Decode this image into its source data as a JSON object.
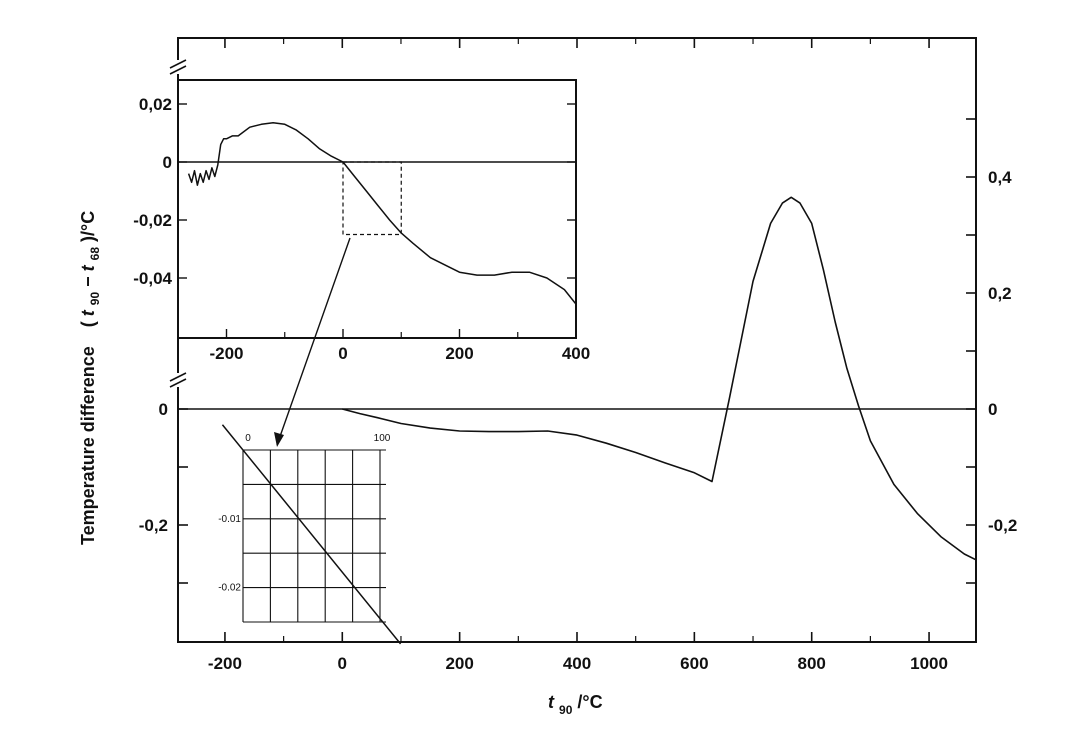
{
  "chart_data": [
    {
      "type": "line",
      "panel": "main",
      "ylabel_text": "Temperature difference",
      "ylabel_math": {
        "open": "(",
        "t1": "t",
        "s1": "90",
        "minus": " − ",
        "t2": "t",
        "s2": "68",
        "close": ")/°C"
      },
      "xlabel": {
        "t": "t",
        "sub": "90",
        "rest": "/°C"
      },
      "xlim": [
        -280,
        1080
      ],
      "ylim": [
        -0.4,
        0.55
      ],
      "xticks": [
        -200,
        0,
        200,
        400,
        600,
        800,
        1000
      ],
      "xtick_labels": [
        "-200",
        "0",
        "200",
        "400",
        "600",
        "800",
        "1000"
      ],
      "yticks_left": [
        0,
        -0.2
      ],
      "ytick_left_labels": [
        "0",
        "-0,2"
      ],
      "yticks_right": [
        0.4,
        0.2,
        0,
        -0.2
      ],
      "ytick_right_labels": [
        "0,4",
        "0,2",
        "0",
        "-0,2"
      ],
      "reference_line_y": 0,
      "series": [
        {
          "x": [
            0,
            30,
            60,
            100,
            150,
            200,
            250,
            300,
            350,
            400,
            450,
            500,
            550,
            600,
            630,
            660,
            700,
            730,
            750,
            765,
            780,
            800,
            820,
            840,
            860,
            880,
            900,
            940,
            980,
            1020,
            1060,
            1080
          ],
          "y": [
            0,
            -0.008,
            -0.015,
            -0.025,
            -0.033,
            -0.038,
            -0.039,
            -0.039,
            -0.038,
            -0.045,
            -0.059,
            -0.075,
            -0.093,
            -0.11,
            -0.125,
            0.02,
            0.22,
            0.32,
            0.355,
            0.365,
            0.355,
            0.32,
            0.24,
            0.15,
            0.07,
            0.005,
            -0.055,
            -0.13,
            -0.18,
            -0.22,
            -0.25,
            -0.26
          ]
        }
      ]
    },
    {
      "type": "line",
      "panel": "upper-inset",
      "xlim": [
        -270,
        400
      ],
      "ylim": [
        -0.06,
        0.03
      ],
      "xticks": [
        -200,
        0,
        200,
        400
      ],
      "xtick_labels": [
        "-200",
        "0",
        "200",
        "400"
      ],
      "yticks": [
        0.02,
        0,
        -0.02,
        -0.04
      ],
      "ytick_labels": [
        "0,02",
        "0",
        "-0,02",
        "-0,04"
      ],
      "reference_line_y": 0,
      "zoom_box": {
        "x": [
          0,
          100
        ],
        "y": [
          -0.025,
          0
        ]
      },
      "series": [
        {
          "x": [
            -265,
            -260,
            -255,
            -250,
            -245,
            -240,
            -235,
            -230,
            -225,
            -220,
            -215,
            -210,
            -205,
            -200,
            -190,
            -180,
            -160,
            -140,
            -120,
            -100,
            -80,
            -60,
            -40,
            -20,
            0,
            20,
            40,
            60,
            80,
            100,
            120,
            150,
            180,
            200,
            230,
            260,
            290,
            320,
            350,
            380,
            400
          ],
          "y": [
            -0.004,
            -0.007,
            -0.003,
            -0.008,
            -0.004,
            -0.007,
            -0.003,
            -0.006,
            -0.002,
            -0.005,
            -0.001,
            0.006,
            0.008,
            0.008,
            0.009,
            0.009,
            0.012,
            0.013,
            0.0135,
            0.013,
            0.011,
            0.008,
            0.0045,
            0.002,
            0,
            -0.005,
            -0.01,
            -0.015,
            -0.02,
            -0.0245,
            -0.028,
            -0.033,
            -0.036,
            -0.038,
            -0.039,
            -0.039,
            -0.038,
            -0.038,
            -0.04,
            -0.044,
            -0.049
          ]
        }
      ]
    },
    {
      "type": "line",
      "panel": "lower-inset",
      "xlim": [
        0,
        100
      ],
      "ylim": [
        -0.025,
        0
      ],
      "xtick_labels": [
        "0",
        "100"
      ],
      "ytick_labels": [
        "-0.01",
        "-0.02"
      ],
      "yticks": [
        -0.01,
        -0.02
      ],
      "grid": true,
      "series": [
        {
          "x": [
            0,
            100
          ],
          "y": [
            0,
            -0.0245
          ]
        }
      ]
    }
  ]
}
